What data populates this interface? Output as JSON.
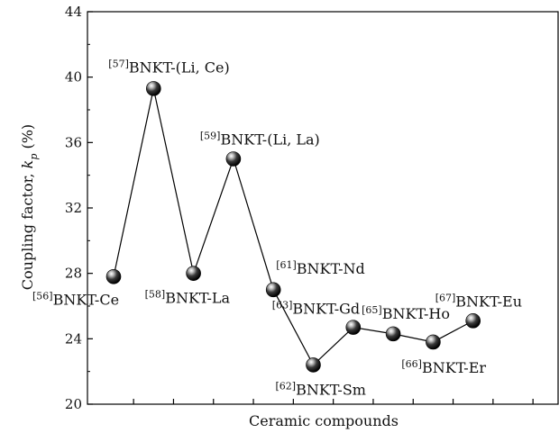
{
  "chart_data": {
    "type": "line",
    "xlabel": "Ceramic compounds",
    "ylabel": "Coupling factor, k_p (%)",
    "ylabel_parts": {
      "main": "Coupling factor, ",
      "var": "k",
      "sub": "p",
      "tail": " (%)"
    },
    "ylim": [
      20,
      44
    ],
    "yticks": [
      20,
      24,
      28,
      32,
      36,
      40,
      44
    ],
    "grid": false,
    "marker": "sphere",
    "points": [
      {
        "x": 1,
        "y": 27.8,
        "ref": "[56]",
        "name": "BNKT-Ce",
        "label_side": "below-left"
      },
      {
        "x": 2,
        "y": 39.3,
        "ref": "[57]",
        "name": "BNKT-(Li, Ce)",
        "label_side": "above"
      },
      {
        "x": 3,
        "y": 28.0,
        "ref": "[58]",
        "name": "BNKT-La",
        "label_side": "below"
      },
      {
        "x": 4,
        "y": 35.0,
        "ref": "[59]",
        "name": "BNKT-(Li, La)",
        "label_side": "above"
      },
      {
        "x": 5,
        "y": 27.0,
        "ref": "[61]",
        "name": "BNKT-Nd",
        "label_side": "above-right"
      },
      {
        "x": 6,
        "y": 22.4,
        "ref": "[62]",
        "name": "BNKT-Sm",
        "label_side": "below"
      },
      {
        "x": 7,
        "y": 24.7,
        "ref": "[63]",
        "name": "BNKT-Gd",
        "label_side": "above-left"
      },
      {
        "x": 8,
        "y": 24.3,
        "ref": "[65]",
        "name": "BNKT-Ho",
        "label_side": "above"
      },
      {
        "x": 9,
        "y": 23.8,
        "ref": "[66]",
        "name": "BNKT-Er",
        "label_side": "below"
      },
      {
        "x": 10,
        "y": 25.1,
        "ref": "[67]",
        "name": "BNKT-Eu",
        "label_side": "above"
      }
    ]
  }
}
